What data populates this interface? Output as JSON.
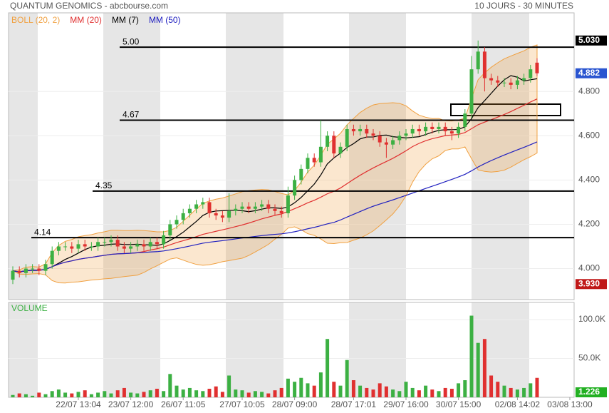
{
  "chart_data": {
    "type": "candlestick",
    "title": "QUANTUM GENOMICS - abcbourse.com",
    "subtitle": "10 JOURS - 30 MINUTES",
    "categories": [
      null,
      null,
      null,
      null,
      null,
      null,
      null,
      null,
      null,
      null,
      "22/07 13:04",
      null,
      null,
      null,
      null,
      null,
      null,
      null,
      "23/07 12:00",
      null,
      null,
      null,
      null,
      null,
      null,
      null,
      "26/07 11:05",
      null,
      null,
      null,
      null,
      null,
      null,
      null,
      null,
      "27/07 10:05",
      null,
      null,
      null,
      null,
      null,
      null,
      null,
      "28/07 09:00",
      null,
      null,
      null,
      null,
      null,
      null,
      null,
      null,
      "28/07 17:01",
      null,
      null,
      null,
      null,
      null,
      null,
      null,
      "29/07 16:00",
      null,
      null,
      null,
      null,
      null,
      null,
      null,
      "30/07 15:00",
      null,
      null,
      null,
      null,
      null,
      null,
      null,
      null,
      "02/08 14:02",
      null,
      null,
      null,
      null,
      null,
      null,
      null,
      "03/08 13:00"
    ],
    "open": [
      3.95,
      3.99,
      3.98,
      4.0,
      4.0,
      3.99,
      4.02,
      4.08,
      4.1,
      4.1,
      4.09,
      4.11,
      4.1,
      4.1,
      4.12,
      4.12,
      4.13,
      4.1,
      4.09,
      4.1,
      4.11,
      4.1,
      4.12,
      4.11,
      4.15,
      4.2,
      4.22,
      4.25,
      4.27,
      4.29,
      4.3,
      4.25,
      4.24,
      4.23,
      4.26,
      4.27,
      4.28,
      4.27,
      4.28,
      4.29,
      4.27,
      4.26,
      4.25,
      4.33,
      4.4,
      4.45,
      4.5,
      4.48,
      4.55,
      4.6,
      4.52,
      4.55,
      4.63,
      4.62,
      4.63,
      4.61,
      4.6,
      4.57,
      4.56,
      4.58,
      4.6,
      4.61,
      4.63,
      4.62,
      4.64,
      4.63,
      4.64,
      4.62,
      4.61,
      4.64,
      4.7,
      4.9,
      4.98,
      4.86,
      4.85,
      4.84,
      4.84,
      4.83,
      4.85,
      4.86,
      4.93,
      null,
      null,
      null,
      null,
      null
    ],
    "high": [
      4.01,
      4.01,
      4.02,
      4.02,
      4.02,
      4.04,
      4.1,
      4.12,
      4.12,
      4.12,
      4.13,
      4.13,
      4.12,
      4.14,
      4.14,
      4.15,
      4.15,
      4.12,
      4.12,
      4.13,
      4.13,
      4.14,
      4.14,
      4.17,
      4.22,
      4.24,
      4.27,
      4.29,
      4.31,
      4.32,
      4.32,
      4.27,
      4.26,
      4.34,
      4.29,
      4.3,
      4.3,
      4.3,
      4.31,
      4.31,
      4.29,
      4.28,
      4.37,
      4.42,
      4.47,
      4.52,
      4.52,
      4.67,
      4.62,
      4.62,
      4.57,
      4.65,
      4.65,
      4.65,
      4.65,
      4.63,
      4.62,
      4.59,
      4.6,
      4.62,
      4.63,
      4.65,
      4.65,
      4.66,
      4.66,
      4.66,
      4.66,
      4.64,
      4.66,
      4.72,
      4.96,
      5.03,
      5.0,
      4.88,
      4.87,
      4.86,
      4.86,
      4.87,
      4.88,
      4.92,
      4.95,
      null,
      null,
      null,
      null,
      null
    ],
    "low": [
      3.93,
      3.96,
      3.96,
      3.98,
      3.97,
      3.97,
      4.0,
      4.06,
      4.08,
      4.07,
      4.07,
      4.08,
      4.08,
      4.08,
      4.1,
      4.1,
      4.08,
      4.07,
      4.07,
      4.08,
      4.08,
      4.08,
      4.09,
      4.09,
      4.13,
      4.18,
      4.2,
      4.23,
      4.25,
      4.27,
      4.23,
      4.22,
      4.21,
      4.21,
      4.24,
      4.25,
      4.25,
      4.25,
      4.26,
      4.25,
      4.24,
      4.23,
      4.23,
      4.31,
      4.38,
      4.43,
      4.46,
      4.46,
      4.53,
      4.5,
      4.5,
      4.53,
      4.6,
      4.6,
      4.59,
      4.58,
      4.55,
      4.5,
      4.54,
      4.56,
      4.58,
      4.59,
      4.6,
      4.6,
      4.61,
      4.61,
      4.6,
      4.58,
      4.59,
      4.62,
      4.68,
      4.88,
      4.8,
      4.83,
      4.82,
      4.82,
      4.81,
      4.81,
      4.83,
      4.84,
      4.87,
      null,
      null,
      null,
      null,
      null
    ],
    "close": [
      3.99,
      3.98,
      4.0,
      4.0,
      3.99,
      4.02,
      4.08,
      4.1,
      4.1,
      4.09,
      4.11,
      4.1,
      4.1,
      4.12,
      4.12,
      4.13,
      4.1,
      4.09,
      4.1,
      4.11,
      4.1,
      4.12,
      4.11,
      4.15,
      4.2,
      4.22,
      4.25,
      4.27,
      4.29,
      4.3,
      4.25,
      4.24,
      4.23,
      4.26,
      4.27,
      4.28,
      4.27,
      4.28,
      4.29,
      4.27,
      4.26,
      4.25,
      4.33,
      4.4,
      4.45,
      4.5,
      4.48,
      4.55,
      4.6,
      4.52,
      4.55,
      4.63,
      4.62,
      4.63,
      4.61,
      4.6,
      4.57,
      4.56,
      4.58,
      4.6,
      4.61,
      4.63,
      4.62,
      4.64,
      4.63,
      4.64,
      4.62,
      4.61,
      4.64,
      4.7,
      4.9,
      4.98,
      4.86,
      4.85,
      4.84,
      4.84,
      4.83,
      4.85,
      4.86,
      4.9,
      4.882,
      null,
      null,
      null,
      null,
      null
    ],
    "volume": [
      3000,
      5000,
      4000,
      2000,
      6000,
      4000,
      8000,
      10000,
      6000,
      5000,
      7000,
      9000,
      4000,
      6000,
      8000,
      5000,
      9000,
      12000,
      6000,
      5000,
      7000,
      9000,
      11000,
      8000,
      30000,
      15000,
      10000,
      12000,
      9000,
      8000,
      11000,
      14000,
      7000,
      28000,
      10000,
      9000,
      6000,
      8000,
      7000,
      5000,
      9000,
      12000,
      24000,
      20000,
      25000,
      18000,
      15000,
      32000,
      75000,
      20000,
      15000,
      48000,
      22000,
      15000,
      12000,
      10000,
      18000,
      14000,
      10000,
      8000,
      20000,
      12000,
      9000,
      15000,
      10000,
      8000,
      12000,
      11000,
      18000,
      22000,
      105000,
      70000,
      75000,
      28000,
      20000,
      15000,
      12000,
      10000,
      12000,
      18000,
      25000,
      null,
      null,
      null,
      null,
      null
    ],
    "up_color": "#3cb043",
    "down_color": "#e03030",
    "ylim": [
      3.86,
      5.155
    ],
    "yticks": [
      {
        "value": 4.0,
        "label": "4.000"
      },
      {
        "value": 4.2,
        "label": "4.200"
      },
      {
        "value": 4.4,
        "label": "4.400"
      },
      {
        "value": 4.6,
        "label": "4.600"
      },
      {
        "value": 4.8,
        "label": "4.800"
      }
    ],
    "volume_label": "VOLUME",
    "volume_ylim": [
      0,
      122000
    ],
    "volume_yticks": [
      {
        "value": 50000,
        "label": "50.0K"
      },
      {
        "value": 100000,
        "label": "100.0K"
      }
    ],
    "indicators": [
      {
        "name": "BOLL (20, 2)",
        "color": "#f0a040",
        "kind": "boll",
        "period": 20,
        "width": 2
      },
      {
        "name": "MM (20)",
        "color": "#e03030",
        "kind": "ma",
        "period": 20
      },
      {
        "name": "MM (7)",
        "color": "#000000",
        "kind": "ma",
        "period": 7
      },
      {
        "name": "MM (50)",
        "color": "#2020c0",
        "kind": "ma",
        "period": 50
      }
    ],
    "hlines": [
      {
        "value": 5.0,
        "label": "5.00"
      },
      {
        "value": 4.67,
        "label": "4.67"
      },
      {
        "value": 4.35,
        "label": "4.35"
      },
      {
        "value": 4.14,
        "label": "4.14"
      }
    ],
    "price_tags": [
      {
        "value": 5.03,
        "label": "5.030",
        "color": "#000000"
      },
      {
        "value": 4.882,
        "label": "4.882",
        "color": "#2a55d0"
      },
      {
        "value": 3.93,
        "label": "3.930",
        "color": "#c01818"
      }
    ],
    "volume_tag": {
      "value": 1226,
      "label": "1.226",
      "color": "#22b022"
    }
  }
}
